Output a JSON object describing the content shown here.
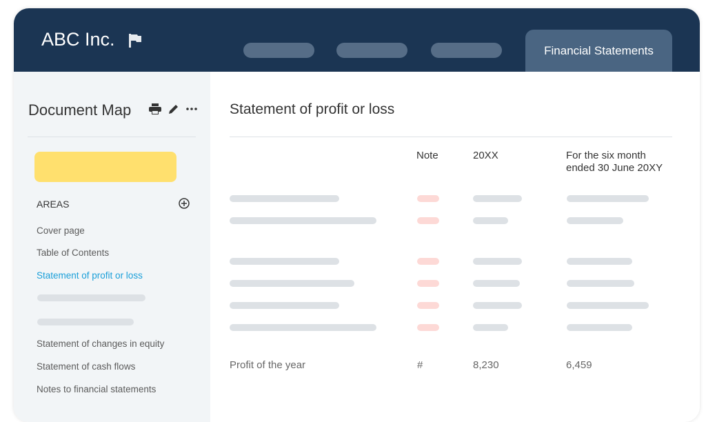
{
  "header": {
    "brand": "ABC Inc.",
    "brand_icon": "flag-icon",
    "active_tab": "Financial Statements"
  },
  "sidebar": {
    "title": "Document Map",
    "icons": [
      "print-icon",
      "edit-icon",
      "more-icon"
    ],
    "section": "AREAS",
    "items": [
      "Cover page",
      "Table of Contents",
      "Statement of profit or loss",
      "Statement of changes in equity",
      "Statement of cash flows",
      "Notes to financial statements"
    ],
    "active_color": "#1a9fd9"
  },
  "main": {
    "title": "Statement of profit or loss",
    "columns": {
      "note": "Note",
      "period1": "20XX",
      "period2": "For the six month ended 30 June 20XY"
    },
    "total_row": {
      "label": "Profit of the year",
      "note": "#",
      "period1": "8,230",
      "period2": "6,459"
    }
  }
}
